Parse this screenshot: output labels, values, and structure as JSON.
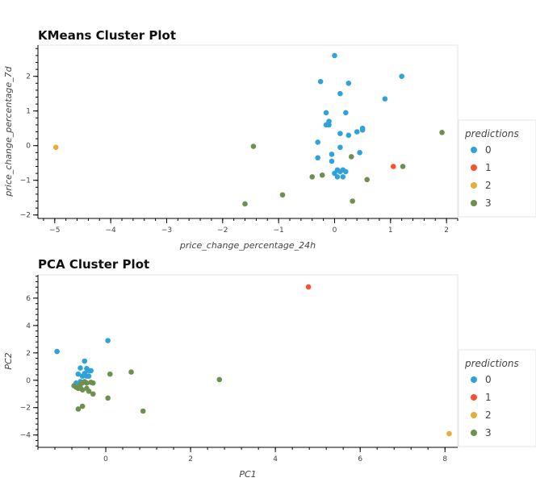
{
  "chart_data": [
    {
      "type": "scatter",
      "title": "KMeans Cluster Plot",
      "xlabel": "price_change_percentage_24h",
      "ylabel": "price_change_percentage_7d",
      "xlim": [
        -5.3,
        2.2
      ],
      "ylim": [
        -2.1,
        2.9
      ],
      "xticks": [
        -5,
        -4,
        -3,
        -2,
        -1,
        0,
        1,
        2
      ],
      "yticks": [
        -2,
        -1,
        0,
        1,
        2
      ],
      "legend": {
        "title": "predictions",
        "placement": "right"
      },
      "series": [
        {
          "name": "0",
          "color": "#30a2da",
          "x": [
            0.0,
            1.2,
            -0.25,
            0.25,
            0.1,
            0.9,
            -0.15,
            0.2,
            -0.1,
            -0.15,
            -0.1,
            0.4,
            0.5,
            0.5,
            0.1,
            0.25,
            -0.3,
            0.1,
            -0.05,
            -0.3,
            0.45,
            -0.05,
            0.05,
            0.1,
            0.15,
            0.2,
            0.05,
            0.0,
            0.15
          ],
          "y": [
            2.6,
            2.0,
            1.85,
            1.8,
            1.5,
            1.35,
            0.95,
            0.95,
            0.7,
            0.6,
            0.6,
            0.4,
            0.45,
            0.5,
            0.35,
            0.3,
            0.1,
            -0.05,
            -0.25,
            -0.35,
            -0.2,
            -0.45,
            -0.7,
            -0.75,
            -0.7,
            -0.75,
            -0.9,
            -0.8,
            -0.9
          ]
        },
        {
          "name": "1",
          "color": "#fc4f30",
          "x": [
            1.05
          ],
          "y": [
            -0.6
          ]
        },
        {
          "name": "2",
          "color": "#e5ae38",
          "x": [
            -4.98
          ],
          "y": [
            -0.05
          ]
        },
        {
          "name": "3",
          "color": "#6d904f",
          "x": [
            -1.45,
            1.92,
            1.22,
            -0.4,
            -0.22,
            0.3,
            0.58,
            -0.93,
            -1.6,
            0.32
          ],
          "y": [
            -0.02,
            0.38,
            -0.6,
            -0.9,
            -0.85,
            -0.32,
            -0.98,
            -1.42,
            -1.68,
            -1.6
          ]
        }
      ]
    },
    {
      "type": "scatter",
      "title": "PCA Cluster Plot",
      "xlabel": "PC1",
      "ylabel": "PC2",
      "xlim": [
        -1.6,
        8.3
      ],
      "ylim": [
        -4.9,
        7.7
      ],
      "xticks": [
        0,
        2,
        4,
        6,
        8
      ],
      "yticks": [
        -4,
        -2,
        0,
        2,
        4,
        6
      ],
      "legend": {
        "title": "predictions",
        "placement": "right"
      },
      "series": [
        {
          "name": "0",
          "color": "#30a2da",
          "x": [
            -1.15,
            0.05,
            -0.5,
            -0.6,
            -0.45,
            -0.4,
            -0.35,
            -0.65,
            -0.55,
            -0.5,
            -0.4,
            -0.45,
            -0.6,
            -0.7
          ],
          "y": [
            2.1,
            2.9,
            1.4,
            0.9,
            0.85,
            0.7,
            0.7,
            0.45,
            0.3,
            0.5,
            0.3,
            0.3,
            -0.1,
            -0.2
          ]
        },
        {
          "name": "1",
          "color": "#fc4f30",
          "x": [
            4.78
          ],
          "y": [
            6.82
          ]
        },
        {
          "name": "2",
          "color": "#e5ae38",
          "x": [
            8.1
          ],
          "y": [
            -3.9
          ]
        },
        {
          "name": "3",
          "color": "#6d904f",
          "x": [
            -0.75,
            -0.6,
            -0.55,
            -0.5,
            -0.45,
            -0.35,
            -0.3,
            -0.7,
            -0.65,
            -0.55,
            -0.45,
            -0.4,
            -0.3,
            -0.65,
            -0.55,
            0.1,
            0.6,
            2.68,
            0.05,
            0.88,
            -0.6
          ],
          "y": [
            -0.4,
            -0.3,
            -0.2,
            -0.1,
            -0.2,
            -0.15,
            -0.2,
            -0.5,
            -0.6,
            -0.7,
            -0.6,
            -0.8,
            -1.0,
            -2.1,
            -1.9,
            0.45,
            0.6,
            0.05,
            -1.3,
            -2.25,
            -0.55
          ]
        }
      ]
    }
  ]
}
